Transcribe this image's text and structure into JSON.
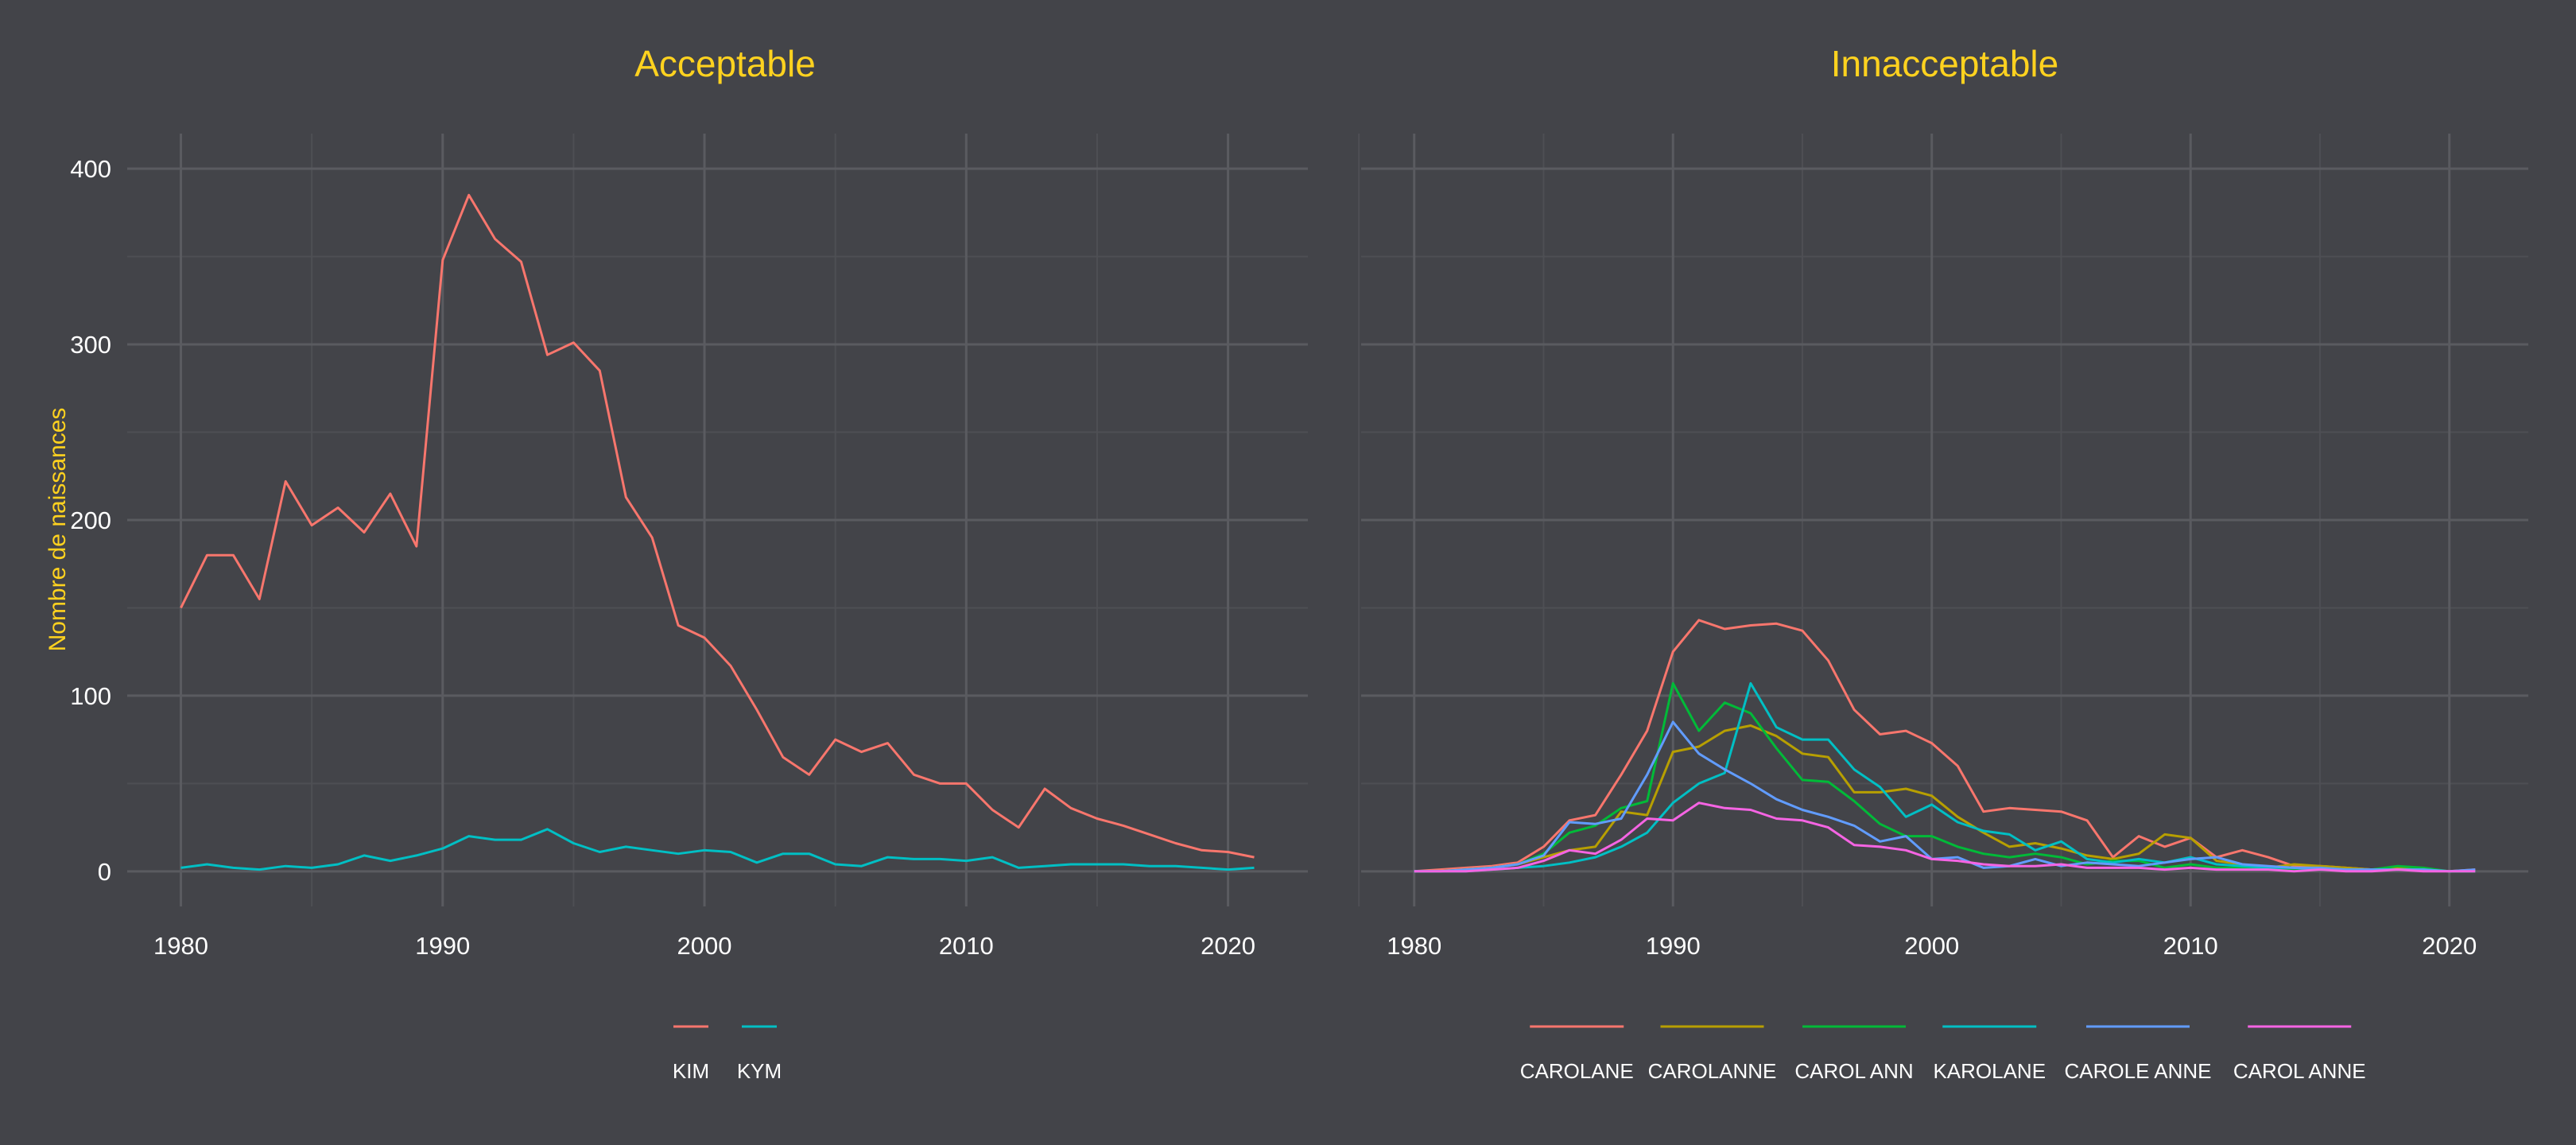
{
  "colors": {
    "background": "#434449",
    "title": "#ffd21f",
    "text": "#ffffff",
    "grid_major": "#5a5b60",
    "grid_minor": "#4e4f54",
    "palette": [
      "#f8766d",
      "#b79f00",
      "#00ba38",
      "#00bfc4",
      "#619cff",
      "#f564e3"
    ]
  },
  "y_axis_label": "Nombre de naissances",
  "chart_data": [
    {
      "type": "line",
      "title": "Acceptable",
      "ylabel": "Nombre de naissances",
      "xlim": [
        1980,
        2021
      ],
      "ylim": [
        0,
        400
      ],
      "x_ticks": [
        "1980",
        "1990",
        "2000",
        "2010",
        "2020"
      ],
      "y_ticks": [
        "0",
        "100",
        "200",
        "300",
        "400"
      ],
      "legend_position": "bottom",
      "x": [
        1980,
        1981,
        1982,
        1983,
        1984,
        1985,
        1986,
        1987,
        1988,
        1989,
        1990,
        1991,
        1992,
        1993,
        1994,
        1995,
        1996,
        1997,
        1998,
        1999,
        2000,
        2001,
        2002,
        2003,
        2004,
        2005,
        2006,
        2007,
        2008,
        2009,
        2010,
        2011,
        2012,
        2013,
        2014,
        2015,
        2016,
        2017,
        2018,
        2019,
        2020,
        2021
      ],
      "series": [
        {
          "name": "KIM",
          "values": [
            150,
            180,
            180,
            155,
            222,
            197,
            207,
            193,
            215,
            185,
            348,
            385,
            360,
            347,
            294,
            301,
            285,
            213,
            190,
            140,
            133,
            117,
            92,
            65,
            55,
            75,
            68,
            73,
            55,
            50,
            50,
            35,
            25,
            47,
            36,
            30,
            26,
            21,
            16,
            12,
            11,
            8
          ]
        },
        {
          "name": "KYM",
          "values": [
            2,
            4,
            2,
            1,
            3,
            2,
            4,
            9,
            6,
            9,
            13,
            20,
            18,
            18,
            24,
            16,
            11,
            14,
            12,
            10,
            12,
            11,
            5,
            10,
            10,
            4,
            3,
            8,
            7,
            7,
            6,
            8,
            2,
            3,
            4,
            4,
            4,
            3,
            3,
            2,
            1,
            2
          ]
        }
      ]
    },
    {
      "type": "line",
      "title": "Innacceptable",
      "xlim": [
        1980,
        2021
      ],
      "ylim": [
        0,
        400
      ],
      "x_ticks": [
        "1980",
        "1990",
        "2000",
        "2010",
        "2020"
      ],
      "legend_position": "bottom",
      "x": [
        1980,
        1981,
        1982,
        1983,
        1984,
        1985,
        1986,
        1987,
        1988,
        1989,
        1990,
        1991,
        1992,
        1993,
        1994,
        1995,
        1996,
        1997,
        1998,
        1999,
        2000,
        2001,
        2002,
        2003,
        2004,
        2005,
        2006,
        2007,
        2008,
        2009,
        2010,
        2011,
        2012,
        2013,
        2014,
        2015,
        2016,
        2017,
        2018,
        2019,
        2020,
        2021
      ],
      "series": [
        {
          "name": "CAROLANE",
          "values": [
            0,
            1,
            2,
            3,
            5,
            14,
            29,
            32,
            55,
            80,
            125,
            143,
            138,
            140,
            141,
            137,
            120,
            92,
            78,
            80,
            73,
            60,
            34,
            36,
            35,
            34,
            29,
            8,
            20,
            14,
            19,
            8,
            12,
            8,
            3,
            3,
            2,
            1,
            1,
            1,
            0,
            1
          ]
        },
        {
          "name": "CAROLANNE",
          "values": [
            0,
            0,
            1,
            2,
            4,
            8,
            12,
            14,
            34,
            32,
            68,
            71,
            80,
            83,
            77,
            67,
            65,
            45,
            45,
            47,
            43,
            31,
            22,
            14,
            16,
            13,
            9,
            7,
            10,
            21,
            19,
            6,
            4,
            2,
            4,
            3,
            2,
            1,
            2,
            1,
            0,
            0
          ]
        },
        {
          "name": "CAROL ANN",
          "values": [
            0,
            0,
            1,
            2,
            4,
            10,
            22,
            26,
            36,
            40,
            107,
            80,
            96,
            90,
            70,
            52,
            51,
            40,
            27,
            20,
            20,
            14,
            10,
            8,
            10,
            8,
            4,
            6,
            6,
            2,
            4,
            2,
            2,
            2,
            1,
            2,
            1,
            1,
            3,
            2,
            0,
            0
          ]
        },
        {
          "name": "KAROLANE",
          "values": [
            0,
            0,
            0,
            1,
            2,
            3,
            5,
            8,
            14,
            22,
            39,
            50,
            56,
            107,
            82,
            75,
            75,
            58,
            48,
            31,
            38,
            28,
            23,
            21,
            12,
            17,
            7,
            5,
            7,
            5,
            8,
            4,
            3,
            2,
            2,
            1,
            1,
            1,
            1,
            1,
            0,
            0
          ]
        },
        {
          "name": "CAROLE ANNE",
          "values": [
            0,
            0,
            1,
            2,
            4,
            9,
            28,
            27,
            30,
            55,
            85,
            67,
            58,
            50,
            41,
            35,
            31,
            26,
            17,
            20,
            7,
            8,
            2,
            3,
            7,
            3,
            5,
            4,
            3,
            5,
            7,
            8,
            4,
            3,
            2,
            2,
            1,
            1,
            1,
            1,
            0,
            1
          ]
        },
        {
          "name": "CAROL ANNE",
          "values": [
            0,
            0,
            0,
            1,
            2,
            6,
            12,
            10,
            18,
            30,
            29,
            39,
            36,
            35,
            30,
            29,
            25,
            15,
            14,
            12,
            7,
            6,
            4,
            3,
            3,
            4,
            2,
            2,
            2,
            1,
            2,
            1,
            1,
            1,
            0,
            1,
            0,
            0,
            1,
            0,
            0,
            0
          ]
        }
      ]
    }
  ]
}
